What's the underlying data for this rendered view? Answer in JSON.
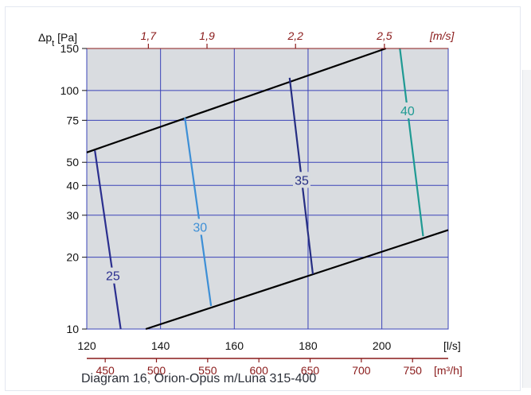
{
  "colors": {
    "plot_bg": "#d9dce0",
    "grid": "#3a43b8",
    "boundary": "#000000",
    "red_axis": "#8a1a1a",
    "series_25": "#2b2f8f",
    "series_30": "#3d8fd6",
    "series_35": "#262e83",
    "series_40": "#1f9a93"
  },
  "chart_data": {
    "type": "line",
    "title": "Diagram 16, Orion-Opus m/Luna 315-400",
    "xlabel": "[l/s]",
    "ylabel": "Δp_t [Pa]",
    "x_scale": "linear",
    "y_scale": "log",
    "xlim": [
      120,
      218
    ],
    "ylim": [
      10,
      150
    ],
    "grid": true,
    "x_ticks": [
      120,
      140,
      160,
      180,
      200
    ],
    "x_tick_labels": [
      "120",
      "140",
      "160",
      "180",
      "200"
    ],
    "y_ticks": [
      10,
      20,
      30,
      40,
      50,
      75,
      100,
      150
    ],
    "y_tick_labels": [
      "10",
      "20",
      "30",
      "40",
      "50",
      "75",
      "100",
      "150"
    ],
    "secondary_x_bottom": {
      "label": "[m³/h]",
      "ticks": [
        450,
        500,
        550,
        600,
        650,
        700,
        750
      ],
      "tick_labels": [
        "450",
        "500",
        "550",
        "600",
        "650",
        "700",
        "750"
      ]
    },
    "secondary_x_top": {
      "label": "[m/s]",
      "tick_labels": [
        "1,7",
        "1,9",
        "2,2",
        "2,5"
      ],
      "tick_x_ls": [
        136.7,
        152.6,
        176.6,
        200.7
      ]
    },
    "series": [
      {
        "name": "25",
        "x": [
          122.2,
          129.2
        ],
        "y": [
          56,
          10
        ]
      },
      {
        "name": "30",
        "x": [
          146.6,
          153.7
        ],
        "y": [
          77,
          12.5
        ]
      },
      {
        "name": "35",
        "x": [
          175.0,
          181.3
        ],
        "y": [
          113,
          17
        ]
      },
      {
        "name": "40",
        "x": [
          204.9,
          211.2
        ],
        "y": [
          150,
          24.5
        ]
      }
    ],
    "boundaries": [
      {
        "x": [
          120,
          201.1
        ],
        "y": [
          55,
          150
        ]
      },
      {
        "x": [
          136.0,
          218
        ],
        "y": [
          10,
          26
        ]
      }
    ]
  }
}
